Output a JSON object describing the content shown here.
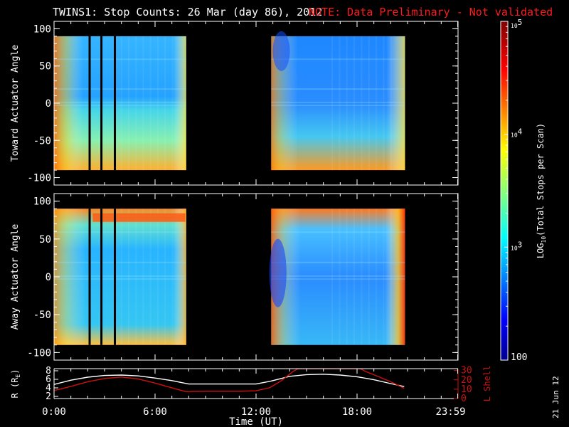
{
  "header": {
    "title": "TWINS1: Stop Counts: 26 Mar (day  86), 2012",
    "note": "NOTE: Data Preliminary - Not validated"
  },
  "footer": {
    "date_stamp": "21 Jun 12"
  },
  "colors": {
    "background": "#000000",
    "text": "#ffffff",
    "note": "#ff1a1a",
    "lshell": "#d01010",
    "r_trace": "#ffffff"
  },
  "chart_data": [
    {
      "type": "heatmap",
      "title": "",
      "ylabel": "Toward Actuator Angle",
      "ylim": [
        -110,
        110
      ],
      "yticks": [
        100,
        50,
        0,
        -50,
        -100
      ],
      "xlim": [
        0,
        24
      ],
      "data_range_y": [
        -90,
        90
      ],
      "gaps_hours": [
        [
          2.05,
          2.15
        ],
        [
          2.75,
          2.85
        ],
        [
          3.55,
          3.65
        ]
      ],
      "data_blocks_hours": [
        [
          0.0,
          7.85
        ],
        [
          12.9,
          20.85
        ]
      ]
    },
    {
      "type": "heatmap",
      "title": "",
      "ylabel": "Away Actuator Angle",
      "ylim": [
        -110,
        110
      ],
      "yticks": [
        100,
        50,
        0,
        -50,
        -100
      ],
      "xlim": [
        0,
        24
      ],
      "data_range_y": [
        -90,
        90
      ],
      "gaps_hours": [
        [
          2.05,
          2.15
        ],
        [
          2.75,
          2.85
        ],
        [
          3.55,
          3.65
        ]
      ],
      "data_blocks_hours": [
        [
          0.0,
          7.85
        ],
        [
          12.9,
          20.85
        ]
      ]
    },
    {
      "type": "line",
      "title": "",
      "xlabel": "Time (UT)",
      "xlim": [
        0,
        24
      ],
      "xticks": [
        "0:00",
        "6:00",
        "12:00",
        "18:00",
        "23:59"
      ],
      "xtick_hours": [
        0,
        6,
        12,
        18,
        23.98
      ],
      "ylabel": "R (R",
      "ylabel_sub": "E",
      "ylabel_end": ")",
      "ylim": [
        1.5,
        8.5
      ],
      "yticks": [
        8,
        6,
        4,
        2
      ],
      "y2label": "L Shell",
      "y2lim": [
        0,
        32
      ],
      "y2ticks": [
        30,
        20,
        10,
        0
      ],
      "series": [
        {
          "axis": "left",
          "x": [
            0,
            1,
            2,
            3,
            4,
            5,
            6,
            7,
            8,
            9,
            10,
            11,
            12,
            12.8,
            14,
            15,
            16,
            17,
            18,
            19,
            20,
            20.8
          ],
          "values": [
            4.8,
            5.8,
            6.5,
            6.9,
            7.0,
            6.8,
            6.3,
            5.7,
            4.9,
            4.9,
            4.9,
            4.9,
            4.9,
            5.5,
            6.7,
            7.1,
            7.2,
            7.0,
            6.6,
            5.9,
            5.0,
            4.3
          ]
        },
        {
          "axis": "right",
          "x": [
            0,
            1,
            2,
            3,
            4,
            5,
            6,
            7,
            7.8,
            9,
            10,
            11,
            12,
            12.8,
            13.5,
            14.2,
            14.5,
            18.2,
            18.5,
            19.2,
            20,
            20.8
          ],
          "values": [
            8.5,
            13,
            18,
            21.5,
            23,
            21,
            16.5,
            11.5,
            7.5,
            7.8,
            7.8,
            7.8,
            8.3,
            11.5,
            19,
            29,
            32,
            32,
            29,
            24,
            18,
            11
          ]
        }
      ]
    },
    {
      "type": "heatmap",
      "title": "",
      "colorbar_label": "LOG",
      "colorbar_label_sub": "10",
      "colorbar_label_end": "(Total Stops per Scan)",
      "colorbar_ticks": [
        {
          "value": 100000,
          "base": "10",
          "exp": "5"
        },
        {
          "value": 10000,
          "base": "10",
          "exp": "4"
        },
        {
          "value": 1000,
          "base": "10",
          "exp": "3"
        },
        {
          "value": 100,
          "base": "100",
          "exp": ""
        }
      ],
      "colorbar_range": [
        100,
        100000
      ]
    }
  ]
}
